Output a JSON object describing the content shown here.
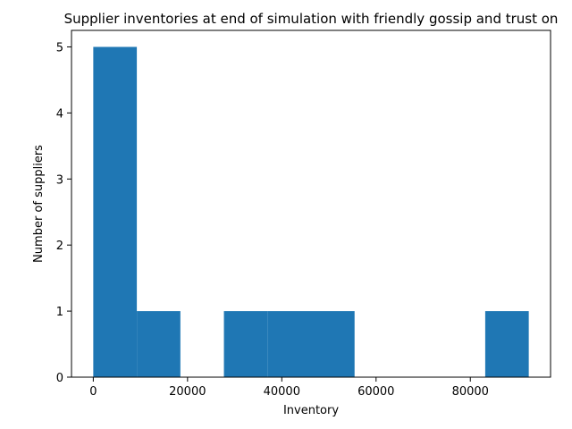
{
  "chart_data": {
    "type": "bar",
    "title": "Supplier inventories at end of simulation with friendly gossip and trust on",
    "xlabel": "Inventory",
    "ylabel": "Number of suppliers",
    "bins": [
      {
        "start": 0,
        "end": 9240,
        "count": 5
      },
      {
        "start": 9240,
        "end": 18480,
        "count": 1
      },
      {
        "start": 18480,
        "end": 27720,
        "count": 0
      },
      {
        "start": 27720,
        "end": 36960,
        "count": 1
      },
      {
        "start": 36960,
        "end": 46200,
        "count": 1
      },
      {
        "start": 46200,
        "end": 55440,
        "count": 1
      },
      {
        "start": 55440,
        "end": 64680,
        "count": 0
      },
      {
        "start": 64680,
        "end": 73920,
        "count": 0
      },
      {
        "start": 73920,
        "end": 83160,
        "count": 0
      },
      {
        "start": 83160,
        "end": 92400,
        "count": 1
      }
    ],
    "xticks": [
      0,
      20000,
      40000,
      60000,
      80000
    ],
    "xtick_labels": [
      "0",
      "20000",
      "40000",
      "60000",
      "80000"
    ],
    "yticks": [
      0,
      1,
      2,
      3,
      4,
      5
    ],
    "ytick_labels": [
      "0",
      "1",
      "2",
      "3",
      "4",
      "5"
    ],
    "xlim": [
      -4620,
      97020
    ],
    "ylim": [
      0,
      5.25
    ],
    "bar_color": "#1f77b4",
    "grid": false
  }
}
